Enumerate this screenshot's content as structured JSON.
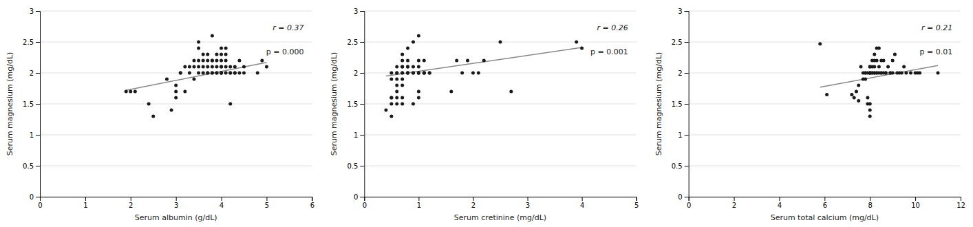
{
  "chart_data": [
    {
      "type": "scatter",
      "xlabel": "Serum albumin (g/dL)",
      "ylabel": "Serum magnesium (mg/dL)",
      "annotations": [
        "r = 0.37",
        "p = 0.000"
      ],
      "xlim": [
        0,
        6
      ],
      "ylim": [
        0,
        3
      ],
      "xticks": [
        0,
        1,
        2,
        3,
        4,
        5,
        6
      ],
      "yticks": [
        0,
        0.5,
        1,
        1.5,
        2,
        2.5,
        3
      ],
      "grid": true,
      "series": [
        {
          "type": "scatter",
          "color": "#1a1a1a",
          "x": [
            1.9,
            2.0,
            2.1,
            2.4,
            2.5,
            2.8,
            2.9,
            3.0,
            3.0,
            3.0,
            3.1,
            3.1,
            3.2,
            3.2,
            3.3,
            3.3,
            3.4,
            3.4,
            3.4,
            3.5,
            3.5,
            3.5,
            3.5,
            3.5,
            3.6,
            3.6,
            3.6,
            3.6,
            3.7,
            3.7,
            3.7,
            3.7,
            3.7,
            3.8,
            3.8,
            3.8,
            3.8,
            3.8,
            3.8,
            3.9,
            3.9,
            3.9,
            3.9,
            3.9,
            4.0,
            4.0,
            4.0,
            4.0,
            4.0,
            4.0,
            4.0,
            4.0,
            4.0,
            4.1,
            4.1,
            4.1,
            4.1,
            4.1,
            4.2,
            4.2,
            4.2,
            4.2,
            4.3,
            4.3,
            4.3,
            4.4,
            4.4,
            4.5,
            4.5,
            4.8,
            4.9,
            5.0
          ],
          "values": [
            1.7,
            1.7,
            1.7,
            1.5,
            1.3,
            1.9,
            1.4,
            1.7,
            1.8,
            1.6,
            2.0,
            2.0,
            1.7,
            2.1,
            2.1,
            2.0,
            2.2,
            2.1,
            1.9,
            2.0,
            2.5,
            2.4,
            2.2,
            2.1,
            2.0,
            2.3,
            2.2,
            2.1,
            2.0,
            2.2,
            2.1,
            2.0,
            2.3,
            2.2,
            2.1,
            2.0,
            2.0,
            2.2,
            2.6,
            2.1,
            2.0,
            2.2,
            2.3,
            2.0,
            2.0,
            2.1,
            2.0,
            2.2,
            2.0,
            2.0,
            2.1,
            2.3,
            2.4,
            2.2,
            2.0,
            2.1,
            2.3,
            2.4,
            2.0,
            2.1,
            2.0,
            1.5,
            2.0,
            2.1,
            2.0,
            2.2,
            2.0,
            2.0,
            2.1,
            2.0,
            2.2,
            2.1
          ]
        },
        {
          "type": "line",
          "color": "#888888",
          "x": [
            1.9,
            5.0
          ],
          "values": [
            1.72,
            2.17
          ]
        }
      ]
    },
    {
      "type": "scatter",
      "xlabel": "Serum cretinine (mg/dL)",
      "ylabel": "Serum magnesium (mg/dL)",
      "annotations": [
        "r = 0.26",
        "p = 0.001"
      ],
      "xlim": [
        0,
        5
      ],
      "ylim": [
        0,
        3
      ],
      "xticks": [
        0,
        1,
        2,
        3,
        4,
        5
      ],
      "yticks": [
        0,
        0.5,
        1,
        1.5,
        2,
        2.5,
        3
      ],
      "grid": true,
      "series": [
        {
          "type": "scatter",
          "color": "#1a1a1a",
          "x": [
            0.4,
            0.5,
            0.5,
            0.5,
            0.5,
            0.5,
            0.5,
            0.6,
            0.6,
            0.6,
            0.6,
            0.6,
            0.6,
            0.6,
            0.6,
            0.7,
            0.7,
            0.7,
            0.7,
            0.7,
            0.7,
            0.7,
            0.7,
            0.7,
            0.7,
            0.8,
            0.8,
            0.8,
            0.8,
            0.8,
            0.8,
            0.8,
            0.9,
            0.9,
            0.9,
            0.9,
            0.9,
            1.0,
            1.0,
            1.0,
            1.0,
            1.0,
            1.0,
            1.0,
            1.0,
            1.1,
            1.1,
            1.1,
            1.1,
            1.2,
            1.2,
            1.6,
            1.7,
            1.8,
            1.9,
            2.0,
            2.1,
            2.2,
            2.5,
            2.7,
            3.9,
            4.0
          ],
          "values": [
            1.4,
            1.6,
            1.6,
            1.5,
            2.0,
            1.9,
            1.3,
            1.7,
            1.6,
            1.9,
            2.0,
            2.0,
            2.1,
            1.8,
            1.5,
            1.5,
            1.6,
            2.0,
            2.1,
            2.2,
            2.1,
            2.0,
            1.9,
            1.8,
            2.3,
            2.0,
            2.1,
            2.0,
            2.0,
            2.1,
            2.2,
            2.4,
            2.5,
            2.0,
            2.1,
            1.5,
            2.0,
            1.7,
            2.0,
            2.0,
            2.1,
            2.2,
            2.0,
            1.6,
            2.6,
            2.0,
            2.0,
            2.2,
            2.0,
            2.0,
            2.0,
            1.7,
            2.2,
            2.0,
            2.2,
            2.0,
            2.0,
            2.2,
            2.5,
            1.7,
            2.5,
            2.4
          ]
        },
        {
          "type": "line",
          "color": "#888888",
          "x": [
            0.4,
            4.0
          ],
          "values": [
            1.95,
            2.41
          ]
        }
      ]
    },
    {
      "type": "scatter",
      "xlabel": "Serum total calcium (mg/dL)",
      "ylabel": "Serum magnesium (mg/dL)",
      "annotations": [
        "r = 0.21",
        "p = 0.01"
      ],
      "xlim": [
        0,
        12
      ],
      "ylim": [
        0,
        3
      ],
      "xticks": [
        0,
        2,
        4,
        6,
        8,
        10,
        12
      ],
      "yticks": [
        0,
        0.5,
        1,
        1.5,
        2,
        2.5,
        3
      ],
      "grid": true,
      "series": [
        {
          "type": "scatter",
          "color": "#1a1a1a",
          "x": [
            5.8,
            6.1,
            7.2,
            7.3,
            7.4,
            7.5,
            7.5,
            7.6,
            7.7,
            7.7,
            7.8,
            7.8,
            7.8,
            7.9,
            7.9,
            7.9,
            8.0,
            8.0,
            8.0,
            8.0,
            8.0,
            8.0,
            8.0,
            8.0,
            8.0,
            8.1,
            8.1,
            8.1,
            8.1,
            8.2,
            8.2,
            8.2,
            8.2,
            8.2,
            8.3,
            8.3,
            8.3,
            8.3,
            8.4,
            8.4,
            8.4,
            8.5,
            8.5,
            8.5,
            8.6,
            8.6,
            8.7,
            8.7,
            8.8,
            8.9,
            8.9,
            9.0,
            9.0,
            9.1,
            9.2,
            9.3,
            9.4,
            9.5,
            9.6,
            9.8,
            10.0,
            10.1,
            10.2,
            11.0
          ],
          "values": [
            2.47,
            1.65,
            1.65,
            1.6,
            1.7,
            1.55,
            1.8,
            2.1,
            1.9,
            2.0,
            2.0,
            2.0,
            1.9,
            1.5,
            2.0,
            1.6,
            2.1,
            2.0,
            2.0,
            2.0,
            2.1,
            1.5,
            1.4,
            1.3,
            2.0,
            2.0,
            2.2,
            2.0,
            2.1,
            2.0,
            2.0,
            2.2,
            2.1,
            2.3,
            2.2,
            2.4,
            2.0,
            2.0,
            2.0,
            2.1,
            2.4,
            2.0,
            2.2,
            2.0,
            2.0,
            2.2,
            2.0,
            2.0,
            2.1,
            2.0,
            2.0,
            2.2,
            2.0,
            2.3,
            2.0,
            2.0,
            2.0,
            2.1,
            2.0,
            2.0,
            2.0,
            2.0,
            2.0,
            2.0
          ]
        },
        {
          "type": "line",
          "color": "#888888",
          "x": [
            5.8,
            11.0
          ],
          "values": [
            1.77,
            2.12
          ]
        }
      ]
    }
  ]
}
